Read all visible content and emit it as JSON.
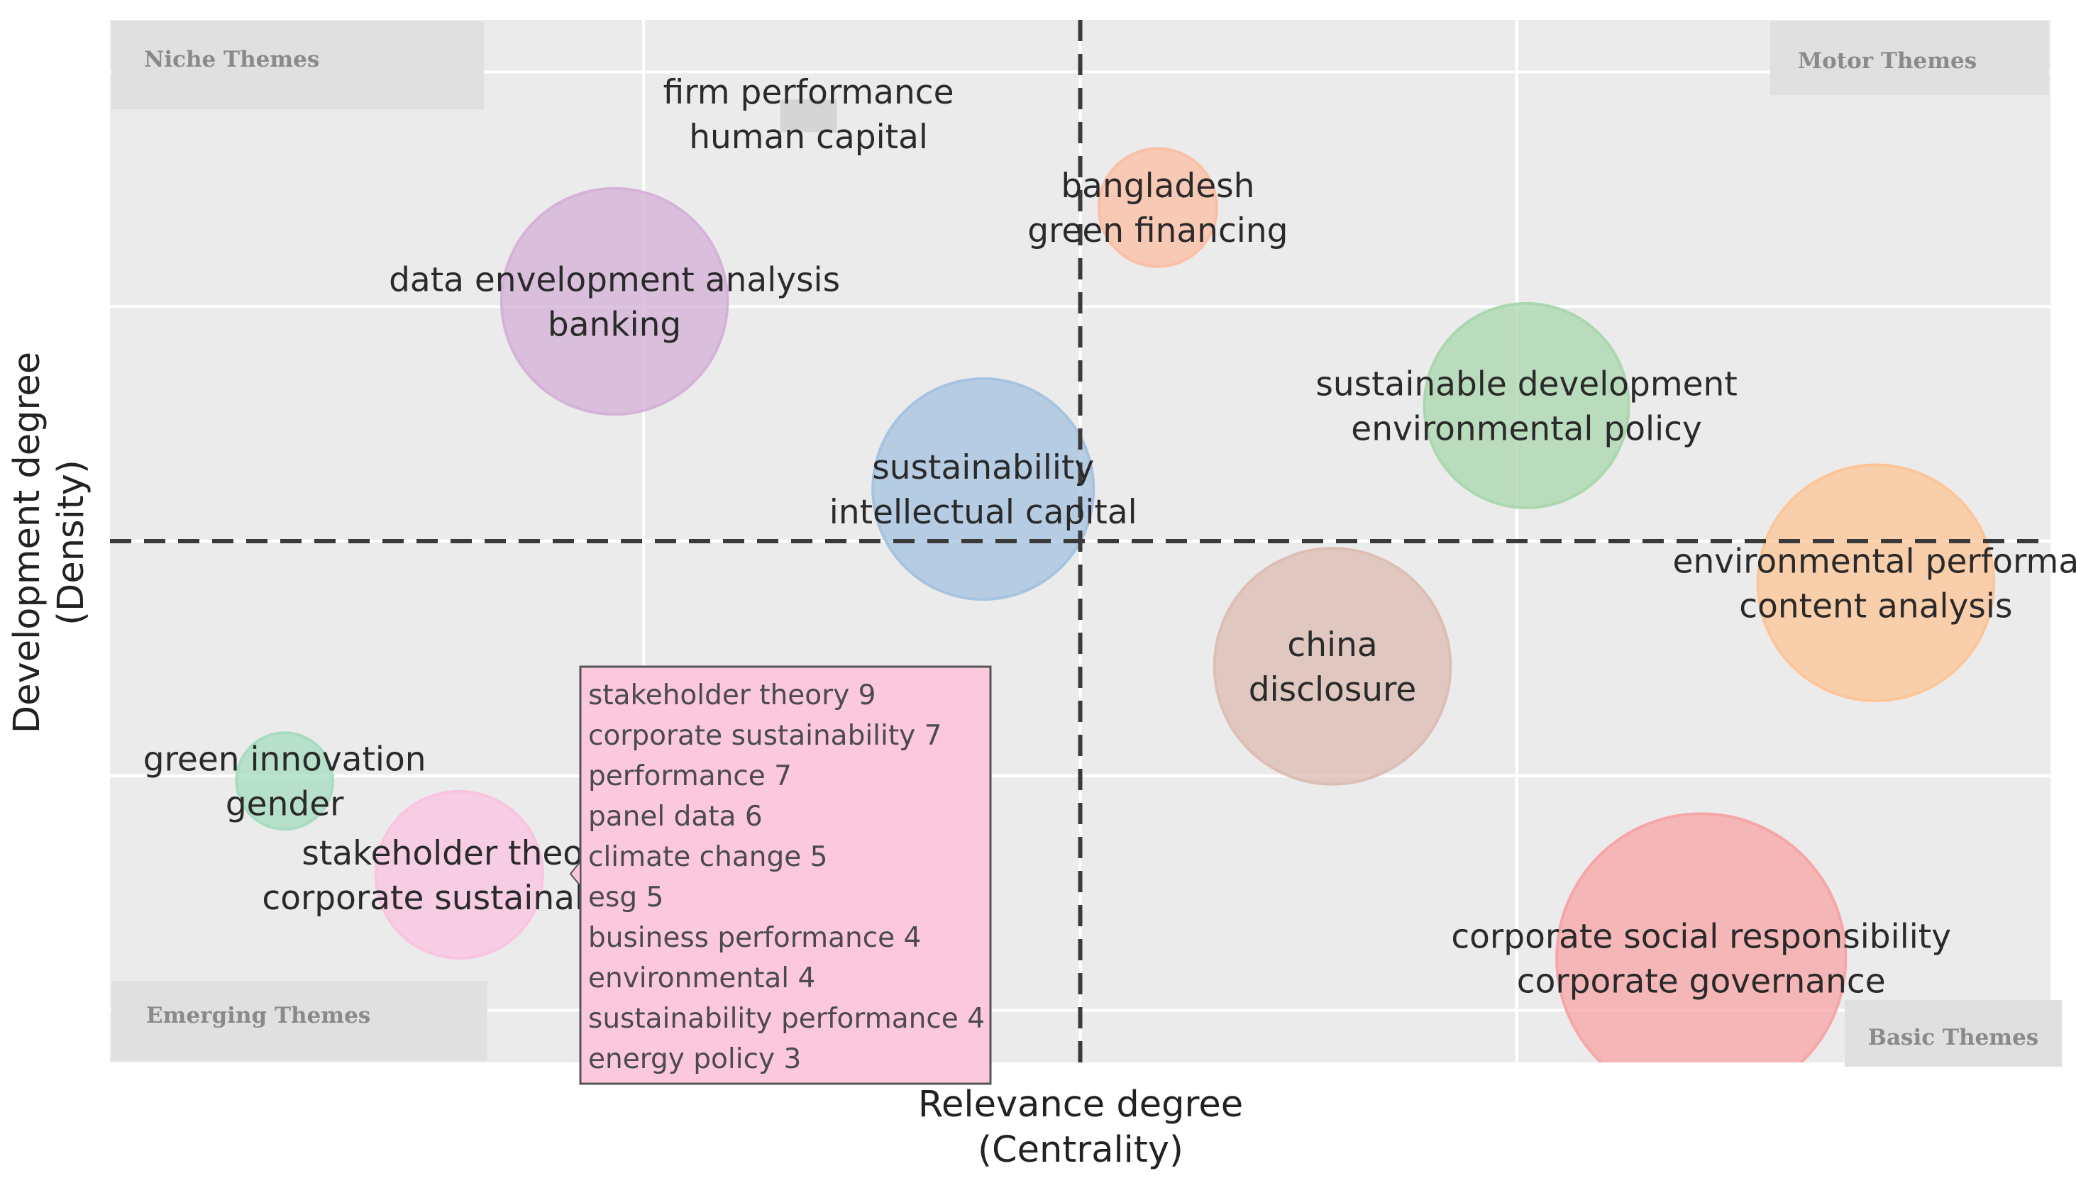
{
  "chart_data": {
    "type": "scatter",
    "xlabel": [
      "Relevance degree",
      "(Centrality)"
    ],
    "ylabel": [
      "Development degree",
      "(Density)"
    ],
    "xlim": [
      0,
      100
    ],
    "ylim": [
      0,
      100
    ],
    "grid": true,
    "quadrant_labels": {
      "top_left": "Niche Themes",
      "top_right": "Motor Themes",
      "bottom_left": "Emerging Themes",
      "bottom_right": "Basic Themes"
    },
    "divider": {
      "x": 50,
      "y": 50
    },
    "points": [
      {
        "lines": [
          "firm performance",
          "human capital"
        ],
        "x": 36,
        "y": 91,
        "size": 0.3,
        "color": "#cfcfcf"
      },
      {
        "lines": [
          "bangladesh",
          "green financing"
        ],
        "x": 54,
        "y": 82,
        "size": 3,
        "color": "#fbbfa5"
      },
      {
        "lines": [
          "data envelopment analysis",
          "banking"
        ],
        "x": 26,
        "y": 73,
        "size": 11,
        "color": "#d5b2d8"
      },
      {
        "lines": [
          "sustainable development",
          "environmental policy"
        ],
        "x": 73,
        "y": 63,
        "size": 9,
        "color": "#abd7ae"
      },
      {
        "lines": [
          "sustainability",
          "intellectual capital"
        ],
        "x": 45,
        "y": 55,
        "size": 10.5,
        "color": "#a6c3e0"
      },
      {
        "lines": [
          "environmental performa",
          "content analysis"
        ],
        "x": 91,
        "y": 46,
        "size": 12,
        "color": "#fdc598"
      },
      {
        "lines": [
          "china",
          "disclosure"
        ],
        "x": 63,
        "y": 38,
        "size": 12,
        "color": "#ddbeb5"
      },
      {
        "lines": [
          "green innovation",
          "gender"
        ],
        "x": 9,
        "y": 27,
        "size": 2,
        "color": "#a8dcc0"
      },
      {
        "lines": [
          "stakeholder theory",
          "corporate sustainability"
        ],
        "x": 18,
        "y": 18,
        "size": 6,
        "color": "#f9c4e0"
      },
      {
        "lines": [
          "corporate social responsibility",
          "corporate governance"
        ],
        "x": 82,
        "y": 10,
        "size": 18,
        "color": "#f7a6a8"
      }
    ],
    "tooltip": {
      "for": "stakeholder theory",
      "items": [
        "stakeholder theory 9",
        "corporate sustainability 7",
        "performance 7",
        "panel data 6",
        "climate change 5",
        "esg 5",
        "business performance 4",
        "environmental 4",
        "sustainability performance 4",
        "energy policy 3"
      ],
      "color": "#fbc8de"
    },
    "colors": {
      "panel": "#ebebeb",
      "grid": "#ffffff",
      "quad_box": "#e0e0e0"
    }
  }
}
